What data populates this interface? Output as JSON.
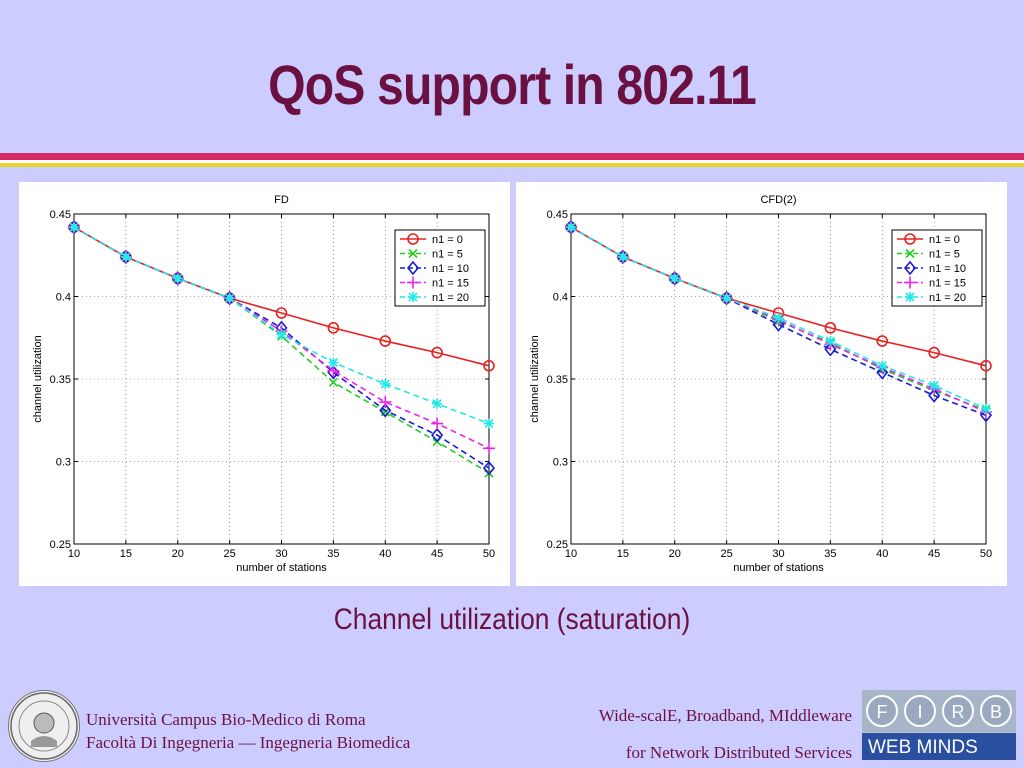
{
  "slide": {
    "title": "QoS support in 802.11",
    "caption": "Channel utilization (saturation)",
    "footer_left_line1": "Università Campus Bio-Medico di Roma",
    "footer_left_line2": "Facoltà Di Ingegneria — Ingegneria Biomedica",
    "footer_right_line1": "Wide-scalE, Broadband, MIddleware",
    "footer_right_line2": "for Network Distributed Services",
    "logo_letters": [
      "F",
      "I",
      "R",
      "B"
    ],
    "logo_text": "WEB MINDS",
    "colors": {
      "background": "#ccccff",
      "title": "#6b1142",
      "rule_top": "#d62a66",
      "rule_bottom": "#e8d42b"
    }
  },
  "chart_data": [
    {
      "type": "line",
      "title": "FD",
      "xlabel": "number of stations",
      "ylabel": "channel utilization",
      "x": [
        10,
        15,
        20,
        25,
        30,
        35,
        40,
        45,
        50
      ],
      "xlim": [
        10,
        50
      ],
      "ylim": [
        0.25,
        0.45
      ],
      "yticks": [
        "0.25",
        "0.3",
        "0.35",
        "0.4",
        "0.45"
      ],
      "grid": true,
      "legend": "top-right",
      "series": [
        {
          "name": "n1 = 0",
          "color": "#e8201e",
          "marker": "o",
          "dash": "solid",
          "values": [
            0.442,
            0.424,
            0.411,
            0.399,
            0.39,
            0.381,
            0.373,
            0.366,
            0.358
          ]
        },
        {
          "name": "n1 = 5",
          "color": "#22cc22",
          "marker": "x",
          "dash": "dash",
          "values": [
            0.442,
            0.424,
            0.411,
            0.399,
            0.376,
            0.348,
            0.33,
            0.312,
            0.293
          ]
        },
        {
          "name": "n1 = 10",
          "color": "#1a1ad6",
          "marker": "d",
          "dash": "dash",
          "values": [
            0.442,
            0.424,
            0.411,
            0.399,
            0.381,
            0.354,
            0.331,
            0.316,
            0.296
          ]
        },
        {
          "name": "n1 = 15",
          "color": "#ee22ee",
          "marker": "+",
          "dash": "dash",
          "values": [
            0.442,
            0.424,
            0.411,
            0.399,
            0.379,
            0.355,
            0.336,
            0.323,
            0.308
          ]
        },
        {
          "name": "n1 = 20",
          "color": "#22e8e8",
          "marker": "*",
          "dash": "dash",
          "values": [
            0.442,
            0.424,
            0.411,
            0.399,
            0.377,
            0.36,
            0.347,
            0.335,
            0.323
          ]
        }
      ]
    },
    {
      "type": "line",
      "title": "CFD(2)",
      "xlabel": "number of stations",
      "ylabel": "channel utilization",
      "x": [
        10,
        15,
        20,
        25,
        30,
        35,
        40,
        45,
        50
      ],
      "xlim": [
        10,
        50
      ],
      "ylim": [
        0.25,
        0.45
      ],
      "yticks": [
        "0.25",
        "0.3",
        "0.35",
        "0.4",
        "0.45"
      ],
      "grid": true,
      "legend": "top-right",
      "series": [
        {
          "name": "n1 = 0",
          "color": "#e8201e",
          "marker": "o",
          "dash": "solid",
          "values": [
            0.442,
            0.424,
            0.411,
            0.399,
            0.39,
            0.381,
            0.373,
            0.366,
            0.358
          ]
        },
        {
          "name": "n1 = 5",
          "color": "#22cc22",
          "marker": "x",
          "dash": "dash",
          "values": [
            0.442,
            0.424,
            0.411,
            0.399,
            0.385,
            0.372,
            0.356,
            0.343,
            0.331
          ]
        },
        {
          "name": "n1 = 10",
          "color": "#1a1ad6",
          "marker": "d",
          "dash": "dash",
          "values": [
            0.442,
            0.424,
            0.411,
            0.399,
            0.383,
            0.368,
            0.354,
            0.34,
            0.328
          ]
        },
        {
          "name": "n1 = 15",
          "color": "#ee22ee",
          "marker": "+",
          "dash": "dash",
          "values": [
            0.442,
            0.424,
            0.411,
            0.399,
            0.386,
            0.371,
            0.357,
            0.344,
            0.33
          ]
        },
        {
          "name": "n1 = 20",
          "color": "#22e8e8",
          "marker": "*",
          "dash": "dash",
          "values": [
            0.442,
            0.424,
            0.411,
            0.399,
            0.387,
            0.373,
            0.358,
            0.346,
            0.332
          ]
        }
      ]
    }
  ]
}
